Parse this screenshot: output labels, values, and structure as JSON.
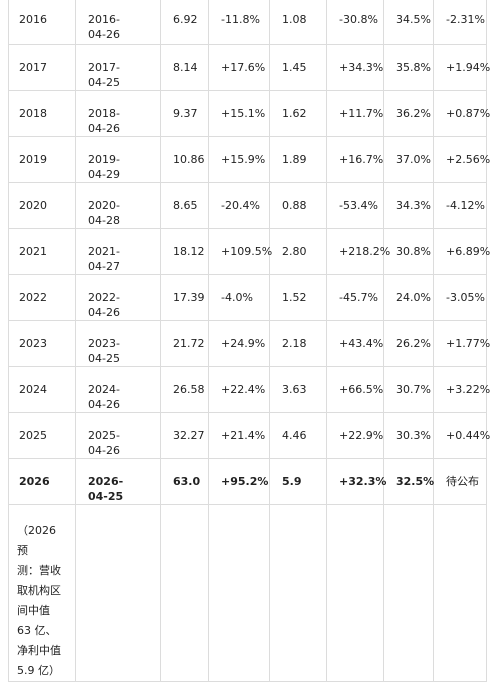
{
  "rows": [
    {
      "year": "2016",
      "date": "2016-\n04-26",
      "revenue": "6.92",
      "revenue_growth": "-11.8%",
      "profit": "1.08",
      "profit_growth": "-30.8%",
      "margin": "34.5%",
      "change": "-2.31%"
    },
    {
      "year": "2017",
      "date": "2017-\n04-25",
      "revenue": "8.14",
      "revenue_growth": "+17.6%",
      "profit": "1.45",
      "profit_growth": "+34.3%",
      "margin": "35.8%",
      "change": "+1.94%"
    },
    {
      "year": "2018",
      "date": "2018-\n04-26",
      "revenue": "9.37",
      "revenue_growth": "+15.1%",
      "profit": "1.62",
      "profit_growth": "+11.7%",
      "margin": "36.2%",
      "change": "+0.87%"
    },
    {
      "year": "2019",
      "date": "2019-\n04-29",
      "revenue": "10.86",
      "revenue_growth": "+15.9%",
      "profit": "1.89",
      "profit_growth": "+16.7%",
      "margin": "37.0%",
      "change": "+2.56%"
    },
    {
      "year": "2020",
      "date": "2020-\n04-28",
      "revenue": "8.65",
      "revenue_growth": "-20.4%",
      "profit": "0.88",
      "profit_growth": "-53.4%",
      "margin": "34.3%",
      "change": "-4.12%"
    },
    {
      "year": "2021",
      "date": "2021-\n04-27",
      "revenue": "18.12",
      "revenue_growth": "+109.5%",
      "profit": "2.80",
      "profit_growth": "+218.2%",
      "margin": "30.8%",
      "change": "+6.89%"
    },
    {
      "year": "2022",
      "date": "2022-\n04-26",
      "revenue": "17.39",
      "revenue_growth": "-4.0%",
      "profit": "1.52",
      "profit_growth": "-45.7%",
      "margin": "24.0%",
      "change": "-3.05%"
    },
    {
      "year": "2023",
      "date": "2023-\n04-25",
      "revenue": "21.72",
      "revenue_growth": "+24.9%",
      "profit": "2.18",
      "profit_growth": "+43.4%",
      "margin": "26.2%",
      "change": "+1.77%"
    },
    {
      "year": "2024",
      "date": "2024-\n04-26",
      "revenue": "26.58",
      "revenue_growth": "+22.4%",
      "profit": "3.63",
      "profit_growth": "+66.5%",
      "margin": "30.7%",
      "change": "+3.22%"
    },
    {
      "year": "2025",
      "date": "2025-\n04-26",
      "revenue": "32.27",
      "revenue_growth": "+21.4%",
      "profit": "4.46",
      "profit_growth": "+22.9%",
      "margin": "30.3%",
      "change": "+0.44%"
    },
    {
      "year": "2026",
      "date": "2026-\n04-25",
      "revenue": "63.0",
      "revenue_growth": "+95.2%",
      "profit": "5.9",
      "profit_growth": "+32.3%",
      "margin": "32.5%",
      "change": "待公布"
    }
  ],
  "note": "（2026 预\n测：营收\n取机构区\n间中值\n63 亿、\n净利中值\n5.9 亿）"
}
